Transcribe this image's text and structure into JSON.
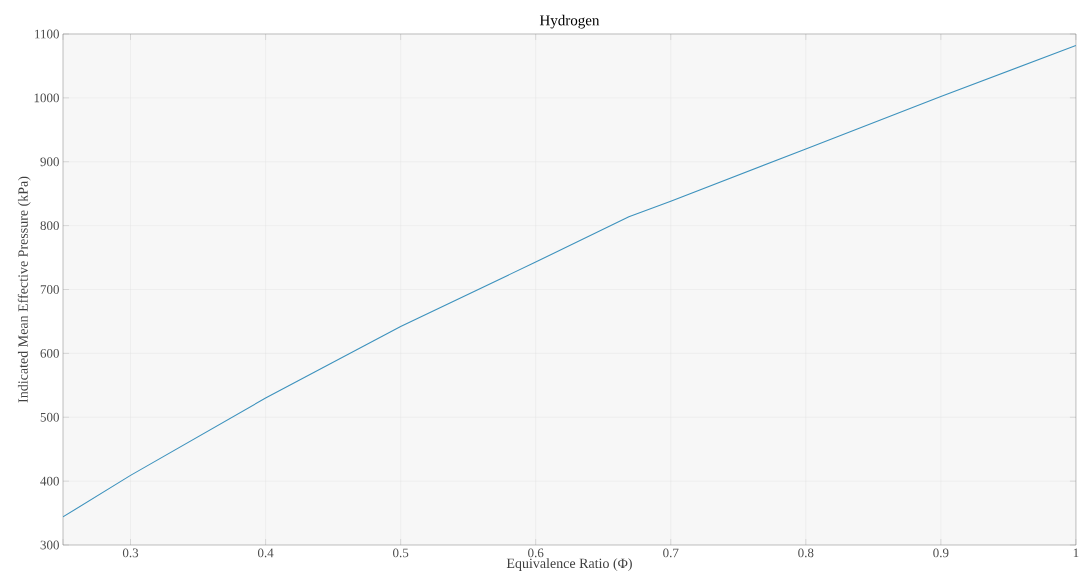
{
  "chart_data": {
    "type": "line",
    "title": "Hydrogen",
    "xlabel": "Equivalence Ratio (Φ)",
    "ylabel": "Indicated Mean Effective Pressure (kPa)",
    "x": [
      0.25,
      0.3,
      0.4,
      0.5,
      0.6,
      0.669,
      0.7,
      0.8,
      0.9,
      1.0
    ],
    "series": [
      {
        "color": "#3d92bd",
        "values": [
          344,
          409,
          530,
          642,
          743,
          814,
          838,
          920,
          1002,
          1082
        ]
      }
    ],
    "xlim": [
      0.25,
      1
    ],
    "ylim": [
      300,
      1100
    ],
    "xticks": [
      {
        "value": 0.25,
        "label": null
      },
      0.3,
      0.4,
      0.5,
      0.6,
      0.7,
      0.8,
      0.9,
      1
    ],
    "yticks": [
      300,
      400,
      500,
      600,
      700,
      800,
      900,
      1000,
      1100
    ],
    "grid": true,
    "line_style": "solid",
    "marker": "none"
  }
}
